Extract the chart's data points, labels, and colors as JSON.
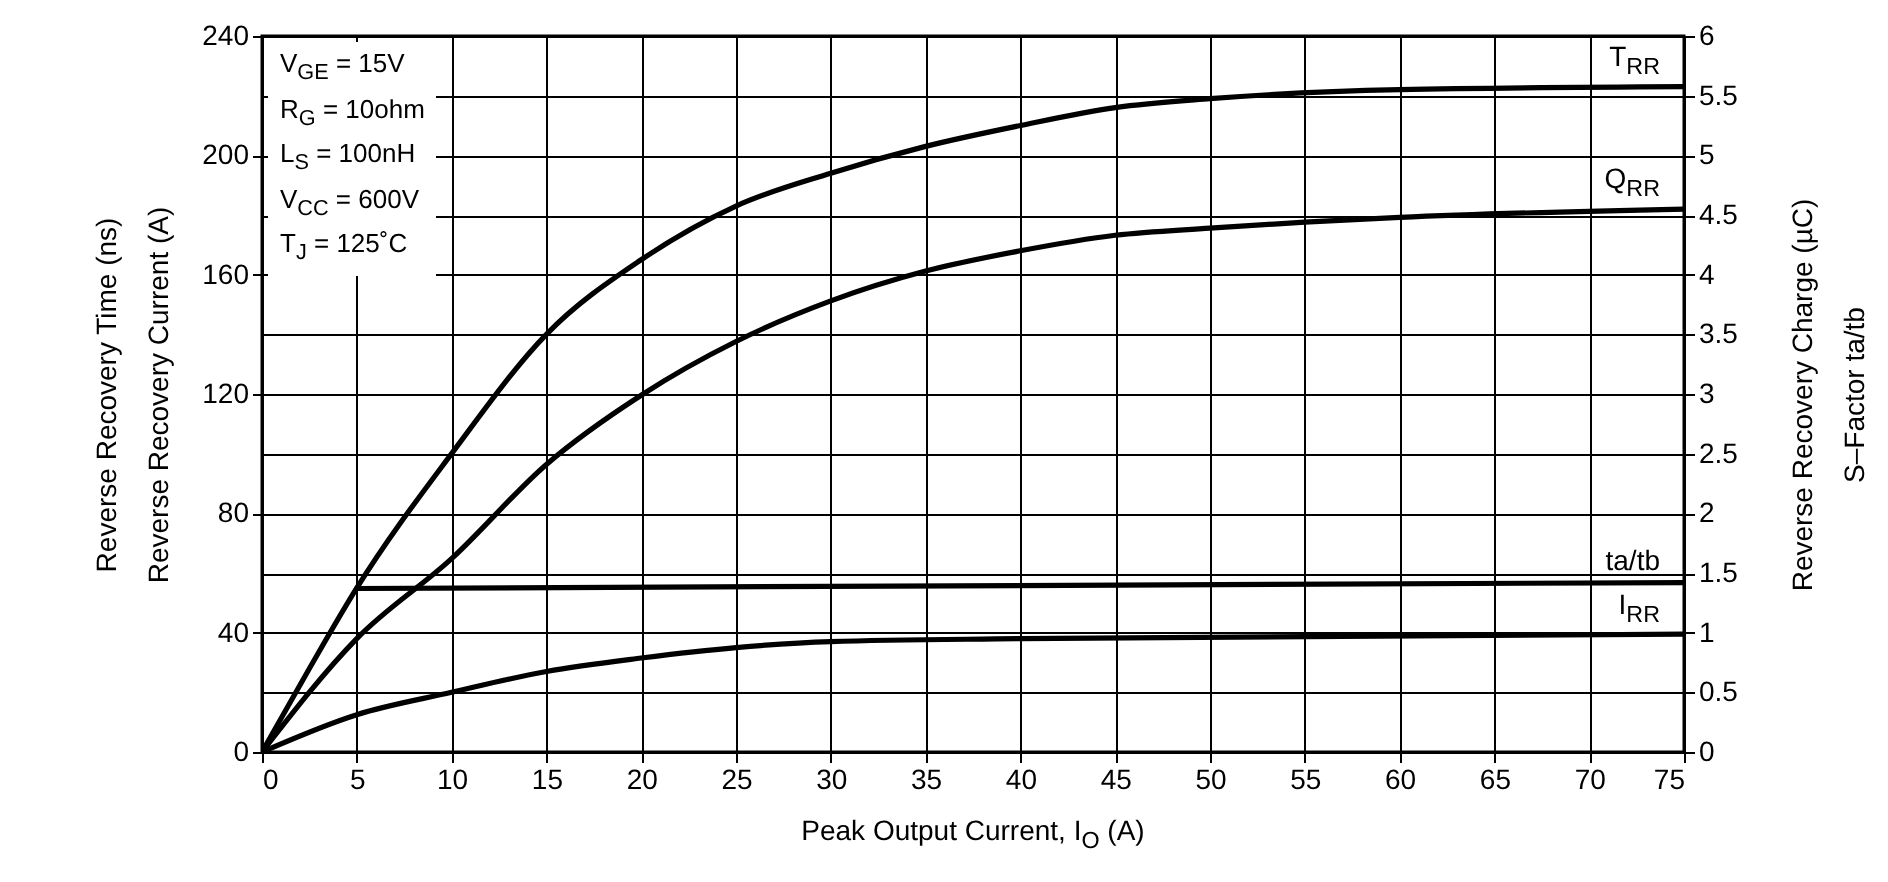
{
  "chart_data": {
    "type": "line",
    "xlabel": "Peak Output Current, I$_{O}$ (A)",
    "ylabel": "Reverse Recovery Time (ns)\nReverse Recovery Current (A)",
    "y2label": "Reverse Recovery Charge (µC)\nS–Factor ta/tb",
    "annotations": [
      "V$_{GE}$ = 15V",
      "R$_{G}$ = 10ohm",
      "L$_{S}$ = 100nH",
      "V$_{CC}$ = 600V",
      "T$_{J}$ = 125˚C"
    ],
    "xlim": [
      0,
      75
    ],
    "xticks": [
      0,
      5,
      10,
      15,
      20,
      25,
      30,
      35,
      40,
      45,
      50,
      55,
      60,
      65,
      70,
      75
    ],
    "ylim": [
      0,
      240
    ],
    "yticks": [
      0,
      40,
      80,
      120,
      160,
      200,
      240
    ],
    "y2lim": [
      0,
      6
    ],
    "y2ticks": [
      0,
      0.5,
      1,
      1.5,
      2,
      2.5,
      3,
      3.5,
      4,
      4.5,
      5,
      5.5,
      6
    ],
    "grid": true,
    "line_style": "solid",
    "series": [
      {
        "name": "T$_{RR}$",
        "color": "#000000",
        "x": [
          0,
          2.5,
          5,
          10,
          15,
          20,
          25,
          30,
          35,
          40,
          45,
          50,
          60,
          75
        ],
        "values": [
          0,
          28,
          55,
          100,
          140,
          165,
          183,
          194,
          203,
          210,
          216,
          219,
          222,
          223
        ]
      },
      {
        "name": "Q$_{RR}$",
        "color": "#000000",
        "axis": "y2",
        "x": [
          0,
          5,
          10,
          15,
          20,
          25,
          30,
          35,
          40,
          45,
          50,
          55,
          60,
          75
        ],
        "values": [
          0,
          0.95,
          1.62,
          2.41,
          2.99,
          3.44,
          3.78,
          4.03,
          4.2,
          4.33,
          4.39,
          4.44,
          4.48,
          4.55
        ]
      },
      {
        "name": "ta/tb",
        "color": "#000000",
        "axis": "y2",
        "x": [
          5,
          75
        ],
        "values": [
          1.37,
          1.42
        ]
      },
      {
        "name": "I$_{RR}$",
        "color": "#000000",
        "x": [
          0,
          5,
          10,
          15,
          20,
          25,
          30,
          40,
          75
        ],
        "values": [
          0,
          12.5,
          20,
          27,
          31.5,
          35,
          37,
          38,
          39.5
        ]
      }
    ]
  }
}
